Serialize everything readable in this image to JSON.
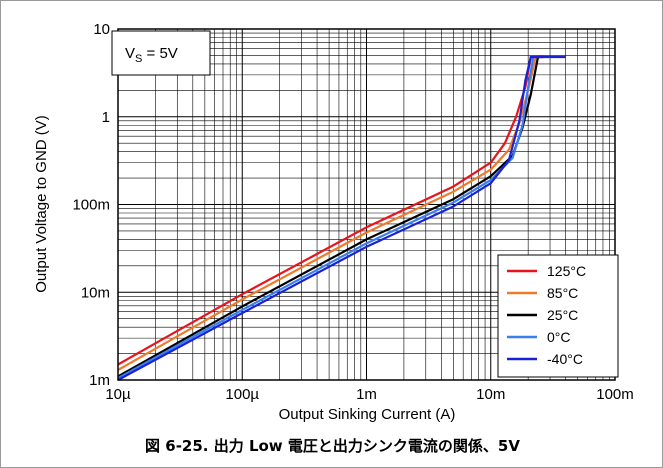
{
  "caption": "図 6-25. 出力 Low 電圧と出力シンク電流の関係、5V",
  "colors": {
    "125C": "#e8141b",
    "85C": "#f07a2a",
    "25C": "#000000",
    "0C": "#3a7ff2",
    "-40C": "#1a22d8"
  },
  "chart_data": {
    "type": "line",
    "annotation": {
      "prefix": "V",
      "subscript": "S",
      "suffix": " = 5V"
    },
    "xlabel": "Output Sinking Current (A)",
    "ylabel": "Output Voltage to GND (V)",
    "xscale": "log",
    "yscale": "log",
    "xlim": [
      1e-05,
      0.1
    ],
    "ylim": [
      0.001,
      10
    ],
    "grid": true,
    "legend_position": "bottom-right",
    "x_ticks": [
      {
        "value": 1e-05,
        "label": "10µ"
      },
      {
        "value": 0.0001,
        "label": "100µ"
      },
      {
        "value": 0.001,
        "label": "1m"
      },
      {
        "value": 0.01,
        "label": "10m"
      },
      {
        "value": 0.1,
        "label": "100m"
      }
    ],
    "y_ticks": [
      {
        "value": 0.001,
        "label": "1m"
      },
      {
        "value": 0.01,
        "label": "10m"
      },
      {
        "value": 0.1,
        "label": "100m"
      },
      {
        "value": 1,
        "label": "1"
      },
      {
        "value": 10,
        "label": "10"
      }
    ],
    "series": [
      {
        "name": "125°C",
        "color": "#e8141b",
        "x": [
          1e-05,
          0.0001,
          0.001,
          0.005,
          0.01,
          0.013,
          0.016,
          0.019,
          0.021,
          0.025
        ],
        "y": [
          0.0015,
          0.0095,
          0.055,
          0.16,
          0.3,
          0.5,
          1.0,
          2.2,
          4.8,
          4.8
        ]
      },
      {
        "name": "85°C",
        "color": "#f07a2a",
        "x": [
          1e-05,
          0.0001,
          0.001,
          0.005,
          0.01,
          0.014,
          0.017,
          0.02,
          0.023,
          0.026
        ],
        "y": [
          0.0013,
          0.0083,
          0.048,
          0.14,
          0.25,
          0.42,
          0.85,
          2.0,
          4.8,
          4.8
        ]
      },
      {
        "name": "25°C",
        "color": "#000000",
        "x": [
          1e-05,
          0.0001,
          0.001,
          0.005,
          0.01,
          0.015,
          0.018,
          0.021,
          0.024,
          0.027
        ],
        "y": [
          0.0011,
          0.0069,
          0.04,
          0.115,
          0.21,
          0.36,
          0.75,
          1.8,
          4.8,
          4.8
        ]
      },
      {
        "name": "0°C",
        "color": "#3a7ff2",
        "x": [
          1e-05,
          0.0001,
          0.001,
          0.005,
          0.01,
          0.015,
          0.018,
          0.02,
          0.022,
          0.024
        ],
        "y": [
          0.00105,
          0.0063,
          0.036,
          0.105,
          0.19,
          0.34,
          0.8,
          2.2,
          4.8,
          4.8
        ]
      },
      {
        "name": "-40°C",
        "color": "#1a22d8",
        "x": [
          1e-05,
          0.0001,
          0.001,
          0.005,
          0.01,
          0.014,
          0.017,
          0.019,
          0.021,
          0.04
        ],
        "y": [
          0.001,
          0.0058,
          0.033,
          0.095,
          0.175,
          0.32,
          0.9,
          2.6,
          4.8,
          4.8
        ]
      }
    ]
  }
}
